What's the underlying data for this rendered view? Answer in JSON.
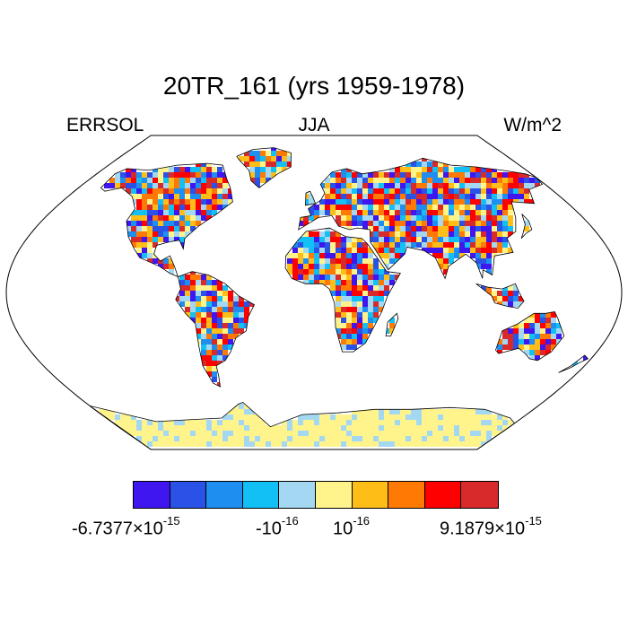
{
  "title": "20TR_161 (yrs 1959-1978)",
  "variable": "ERRSOL",
  "season": "JJA",
  "units": "W/m^2",
  "colorbar": {
    "colors": [
      "#3f15f0",
      "#2b52e6",
      "#1e8ef0",
      "#12c0f5",
      "#a4d8f2",
      "#fff48c",
      "#ffbe17",
      "#ff7a05",
      "#ff0000",
      "#d8292b"
    ],
    "labels": [
      {
        "mantissa": "-6.7377×10",
        "exp": "-15"
      },
      {
        "mantissa": "-10",
        "exp": "-16"
      },
      {
        "mantissa": "10",
        "exp": "-16"
      },
      {
        "mantissa": "9.1879×10",
        "exp": "-15"
      }
    ]
  },
  "map": {
    "projection": "Robinson",
    "lon_range": [
      -180,
      180
    ],
    "lat_range": [
      -90,
      90
    ],
    "field": "random noise over land, values between -6.7377e-15 and 9.1879e-15",
    "ocean_color": "#ffffff",
    "antarctica_fill": "#fff48c"
  }
}
